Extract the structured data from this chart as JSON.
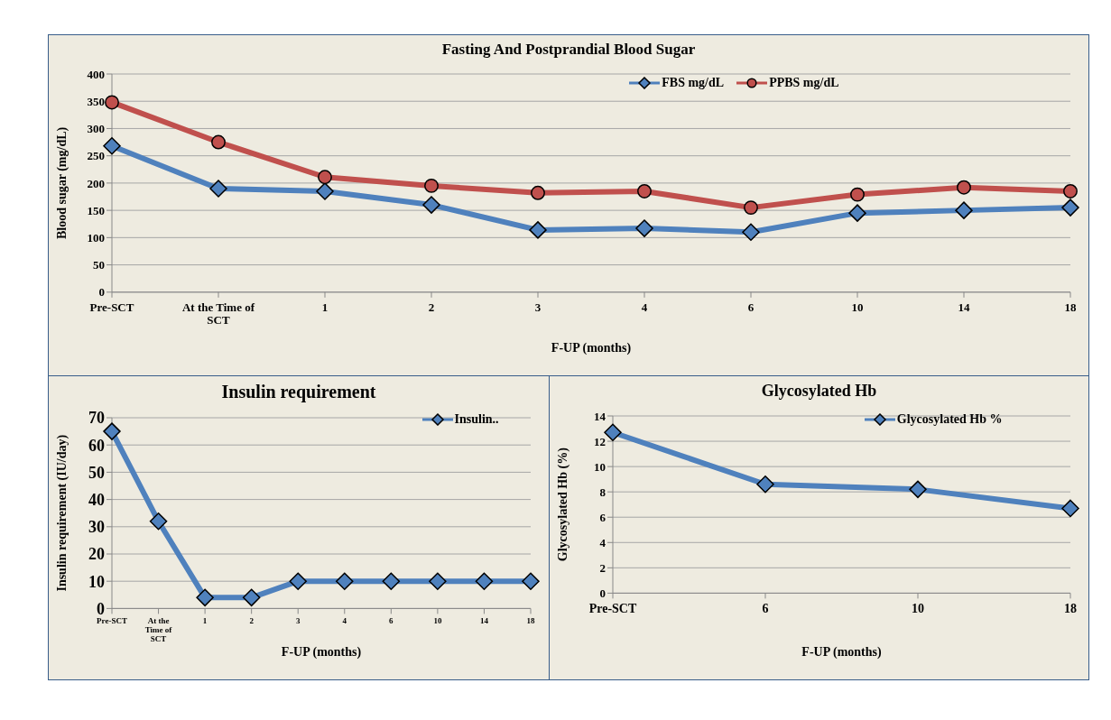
{
  "chart_data": [
    {
      "type": "line",
      "title": "Fasting And Postprandial Blood Sugar",
      "xlabel": "F-UP (months)",
      "ylabel": "Blood sugar (mg/dL)",
      "categories": [
        "Pre-SCT",
        "At the Time of SCT",
        "1",
        "2",
        "3",
        "4",
        "6",
        "10",
        "14",
        "18"
      ],
      "series": [
        {
          "name": "FBS mg/dL",
          "color": "#4f81bd",
          "marker": "diamond",
          "values": [
            268,
            190,
            185,
            160,
            114,
            117,
            110,
            145,
            150,
            155
          ]
        },
        {
          "name": "PPBS mg/dL",
          "color": "#c0504d",
          "marker": "circle",
          "values": [
            348,
            275,
            211,
            195,
            182,
            185,
            155,
            179,
            192,
            185
          ]
        }
      ],
      "ylim": [
        0,
        400
      ],
      "yticks": [
        0,
        50,
        100,
        150,
        200,
        250,
        300,
        350,
        400
      ],
      "grid": "y",
      "legend": "top right"
    },
    {
      "type": "line",
      "title": "Insulin requirement",
      "xlabel": "F-UP (months)",
      "ylabel": "Insulin requirement  (IU/day)",
      "categories": [
        "Pre-SCT",
        "At the Time of SCT",
        "1",
        "2",
        "3",
        "4",
        "6",
        "10",
        "14",
        "18"
      ],
      "series": [
        {
          "name": "Insulin..",
          "color": "#4f81bd",
          "marker": "diamond",
          "values": [
            65,
            32,
            4,
            4,
            10,
            10,
            10,
            10,
            10,
            10
          ]
        }
      ],
      "ylim": [
        0,
        70
      ],
      "yticks": [
        0,
        10,
        20,
        30,
        40,
        50,
        60,
        70
      ],
      "grid": "y",
      "legend": "top right"
    },
    {
      "type": "line",
      "title": "Glycosylated Hb",
      "xlabel": "F-UP (months)",
      "ylabel": "Glycosylated Hb (%)",
      "categories": [
        "Pre-SCT",
        "6",
        "10",
        "18"
      ],
      "series": [
        {
          "name": "Glycosylated Hb %",
          "color": "#4f81bd",
          "marker": "diamond",
          "values": [
            12.7,
            8.6,
            8.2,
            6.7
          ]
        }
      ],
      "ylim": [
        0,
        14
      ],
      "yticks": [
        0,
        2,
        4,
        6,
        8,
        10,
        12,
        14
      ],
      "grid": "y",
      "legend": "top right"
    }
  ]
}
